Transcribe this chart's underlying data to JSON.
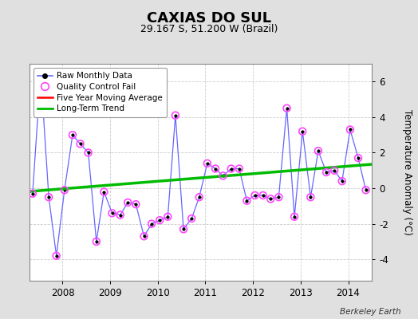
{
  "title": "CAXIAS DO SUL",
  "subtitle": "29.167 S, 51.200 W (Brazil)",
  "ylabel": "Temperature Anomaly (°C)",
  "credit": "Berkeley Earth",
  "xlim": [
    2007.3,
    2014.5
  ],
  "ylim": [
    -5.2,
    7.0
  ],
  "yticks": [
    -4,
    -2,
    0,
    2,
    4,
    6
  ],
  "xticks": [
    2008,
    2009,
    2010,
    2011,
    2012,
    2013,
    2014
  ],
  "bg_color": "#e0e0e0",
  "plot_bg_color": "#ffffff",
  "raw_x": [
    2007.37,
    2007.54,
    2007.71,
    2007.87,
    2008.04,
    2008.21,
    2008.37,
    2008.54,
    2008.71,
    2008.87,
    2009.04,
    2009.21,
    2009.37,
    2009.54,
    2009.71,
    2009.87,
    2010.04,
    2010.21,
    2010.37,
    2010.54,
    2010.71,
    2010.87,
    2011.04,
    2011.21,
    2011.37,
    2011.54,
    2011.71,
    2011.87,
    2012.04,
    2012.21,
    2012.37,
    2012.54,
    2012.71,
    2012.87,
    2013.04,
    2013.21,
    2013.37,
    2013.54,
    2013.71,
    2013.87,
    2014.04,
    2014.21,
    2014.37
  ],
  "raw_y": [
    -0.3,
    6.5,
    -0.5,
    -3.8,
    -0.1,
    3.0,
    2.5,
    2.0,
    -3.0,
    -0.2,
    -1.4,
    -1.5,
    -0.8,
    -0.9,
    -2.7,
    -2.0,
    -1.8,
    -1.6,
    4.1,
    -2.3,
    -1.7,
    -0.5,
    1.4,
    1.1,
    0.7,
    1.1,
    1.1,
    -0.7,
    -0.4,
    -0.4,
    -0.6,
    -0.5,
    4.5,
    -1.6,
    3.2,
    -0.5,
    2.1,
    0.9,
    1.0,
    0.4,
    3.3,
    1.7,
    -0.1
  ],
  "qc_fail_x": [
    2007.37,
    2007.54,
    2007.71,
    2007.87,
    2008.04,
    2008.21,
    2008.37,
    2008.54,
    2008.71,
    2008.87,
    2009.04,
    2009.21,
    2009.37,
    2009.54,
    2009.71,
    2009.87,
    2010.04,
    2010.21,
    2010.37,
    2010.54,
    2010.71,
    2010.87,
    2011.04,
    2011.21,
    2011.37,
    2011.54,
    2011.71,
    2011.87,
    2012.04,
    2012.21,
    2012.37,
    2012.54,
    2012.71,
    2012.87,
    2013.04,
    2013.21,
    2013.37,
    2013.54,
    2013.71,
    2013.87,
    2014.04,
    2014.21,
    2014.37
  ],
  "qc_fail_y": [
    -0.3,
    6.5,
    -0.5,
    -3.8,
    -0.1,
    3.0,
    2.5,
    2.0,
    -3.0,
    -0.2,
    -1.4,
    -1.5,
    -0.8,
    -0.9,
    -2.7,
    -2.0,
    -1.8,
    -1.6,
    4.1,
    -2.3,
    -1.7,
    -0.5,
    1.4,
    1.1,
    0.7,
    1.1,
    1.1,
    -0.7,
    -0.4,
    -0.4,
    -0.6,
    -0.5,
    4.5,
    -1.6,
    3.2,
    -0.5,
    2.1,
    0.9,
    1.0,
    0.4,
    3.3,
    1.7,
    -0.1
  ],
  "trend_x": [
    2007.3,
    2014.5
  ],
  "trend_y": [
    -0.18,
    1.35
  ],
  "line_color": "#6666ff",
  "dot_color": "#000000",
  "qc_color": "#ff44ff",
  "trend_color": "#00bb00",
  "ma_color": "#ff0000",
  "grid_color": "#cccccc",
  "grid_linestyle": "--"
}
